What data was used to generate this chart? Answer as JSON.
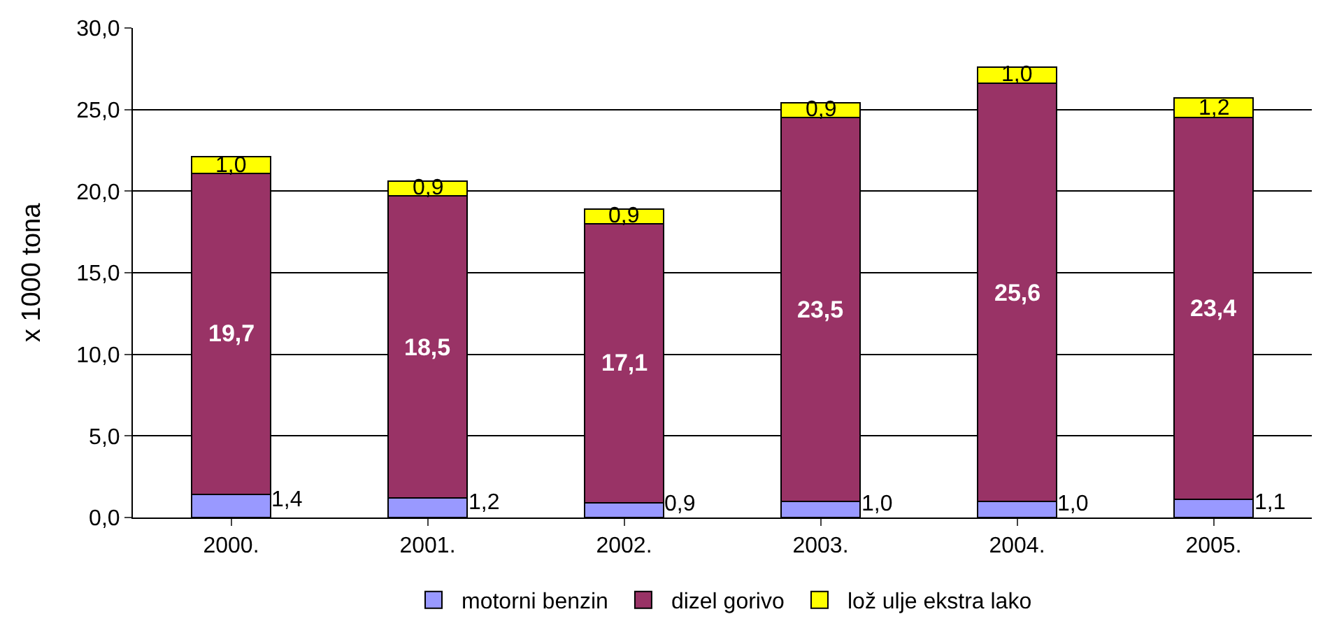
{
  "chart_data": {
    "type": "bar",
    "stacked": true,
    "ylabel": "x 1000 tona",
    "categories": [
      "2000.",
      "2001.",
      "2002.",
      "2003.",
      "2004.",
      "2005."
    ],
    "series": [
      {
        "name": "motorni benzin",
        "color": "#9999ff",
        "values": [
          1.4,
          1.2,
          0.9,
          1.0,
          1.0,
          1.1
        ],
        "value_labels": [
          "1,4",
          "1,2",
          "0,9",
          "1,0",
          "1,0",
          "1,1"
        ]
      },
      {
        "name": "dizel gorivo",
        "color": "#993366",
        "values": [
          19.7,
          18.5,
          17.1,
          23.5,
          25.6,
          23.4
        ],
        "value_labels": [
          "19,7",
          "18,5",
          "17,1",
          "23,5",
          "25,6",
          "23,4"
        ]
      },
      {
        "name": "lož ulje ekstra lako",
        "color": "#ffff00",
        "values": [
          1.0,
          0.9,
          0.9,
          0.9,
          1.0,
          1.2
        ],
        "value_labels": [
          "1,0",
          "0,9",
          "0,9",
          "0,9",
          "1,0",
          "1,2"
        ]
      }
    ],
    "ylim": [
      0,
      30
    ],
    "yticks": [
      {
        "value": 0,
        "label": "0,0"
      },
      {
        "value": 5,
        "label": "5,0"
      },
      {
        "value": 10,
        "label": "10,0"
      },
      {
        "value": 15,
        "label": "15,0"
      },
      {
        "value": 20,
        "label": "20,0"
      },
      {
        "value": 25,
        "label": "25,0"
      },
      {
        "value": 30,
        "label": "30,0"
      }
    ],
    "grid": "y",
    "legend": "bottom"
  }
}
